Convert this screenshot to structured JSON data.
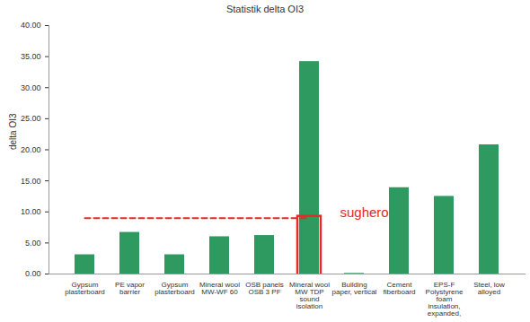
{
  "chart_data": {
    "type": "bar",
    "title": "Statistik delta OI3",
    "y_label": "delta OI3",
    "categories": [
      "Gypsum plasterboard",
      "PE vapor barrier",
      "Gypsum plasterboard",
      "Mineral wool MW-WF 60",
      "OSB panels OSB 3 PF",
      "Mineral wool MW TDP sound isolation",
      "Building paper, vertical",
      "Cement fiberboard",
      "EPS-F Polystyrene foam insulation, expanded,",
      "Steel, low alloyed"
    ],
    "values": [
      3.1,
      6.7,
      3.1,
      6.0,
      6.2,
      34.2,
      0.1,
      13.9,
      12.5,
      20.8
    ],
    "color": "#2e9a5f",
    "ylim": [
      0,
      40
    ],
    "yticks": [
      {
        "value": 0,
        "label": "0.00"
      },
      {
        "value": 5,
        "label": "5.00"
      },
      {
        "value": 10,
        "label": "10.00"
      },
      {
        "value": 15,
        "label": "15.00"
      },
      {
        "value": 20,
        "label": "20.00"
      },
      {
        "value": 25,
        "label": "25.00"
      },
      {
        "value": 30,
        "label": "30.00"
      },
      {
        "value": 35,
        "label": "35.00"
      },
      {
        "value": 40,
        "label": "40.00"
      }
    ],
    "grid": false,
    "annotations": [
      {
        "text": "sughero",
        "y": 9,
        "category": "Mineral wool MW TDP sound isolation",
        "color": "#e8282b",
        "line_style": "dashed"
      }
    ]
  }
}
